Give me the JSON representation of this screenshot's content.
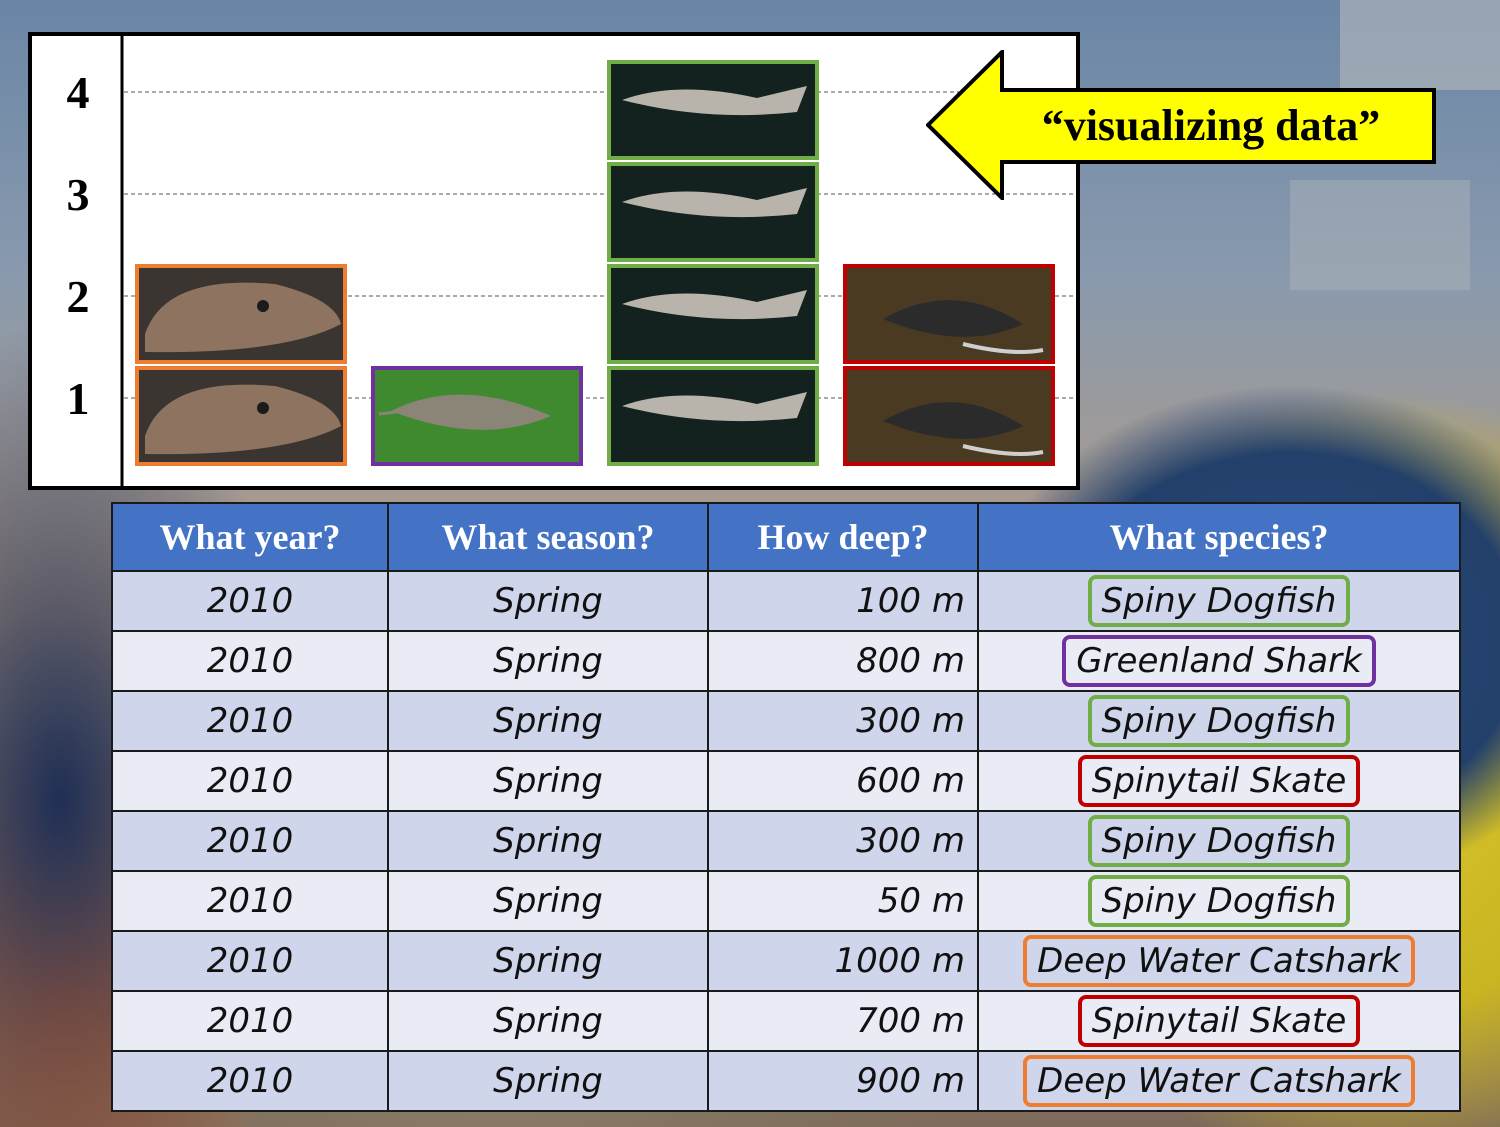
{
  "callout": {
    "text": "“visualizing data”",
    "fill": "#ffff00"
  },
  "chart_data": {
    "type": "bar",
    "style": "pictograph",
    "y_ticks": [
      "1",
      "2",
      "3",
      "4"
    ],
    "ylim": [
      0,
      4.4
    ],
    "grid": "dashed horizontal",
    "categories": [
      "Deep Water Catshark",
      "Greenland Shark",
      "Spiny Dogfish",
      "Spinytail Skate"
    ],
    "values": [
      2,
      1,
      4,
      2
    ],
    "colors": [
      "#ed7d31",
      "#7030a0",
      "#70ad47",
      "#c00000"
    ]
  },
  "table": {
    "headers": [
      "What year?",
      "What season?",
      "How deep?",
      "What species?"
    ],
    "rows": [
      {
        "year": "2010",
        "season": "Spring",
        "depth": "100  m",
        "species": "Spiny Dogfish",
        "color": "#70ad47"
      },
      {
        "year": "2010",
        "season": "Spring",
        "depth": "800  m",
        "species": "Greenland Shark",
        "color": "#7030a0"
      },
      {
        "year": "2010",
        "season": "Spring",
        "depth": "300  m",
        "species": "Spiny Dogfish",
        "color": "#70ad47"
      },
      {
        "year": "2010",
        "season": "Spring",
        "depth": "600  m",
        "species": "Spinytail Skate",
        "color": "#c00000"
      },
      {
        "year": "2010",
        "season": "Spring",
        "depth": "300  m",
        "species": "Spiny Dogfish",
        "color": "#70ad47"
      },
      {
        "year": "2010",
        "season": "Spring",
        "depth": "50  m",
        "species": "Spiny Dogfish",
        "color": "#70ad47"
      },
      {
        "year": "2010",
        "season": "Spring",
        "depth": "1000  m",
        "species": "Deep Water Catshark",
        "color": "#ed7d31"
      },
      {
        "year": "2010",
        "season": "Spring",
        "depth": "700  m",
        "species": "Spinytail Skate",
        "color": "#c00000"
      },
      {
        "year": "2010",
        "season": "Spring",
        "depth": "900  m",
        "species": "Deep Water Catshark",
        "color": "#ed7d31"
      }
    ]
  }
}
